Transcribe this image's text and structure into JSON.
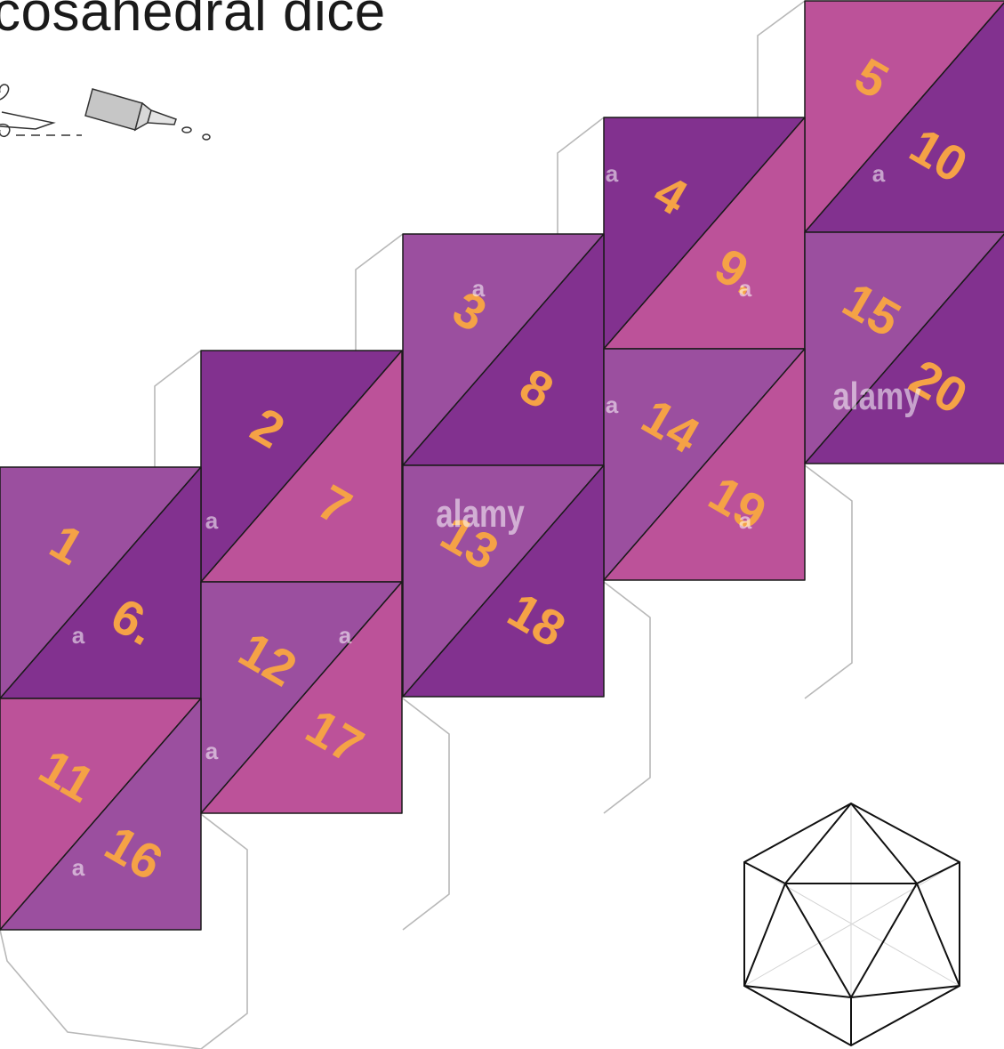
{
  "title": "cosahedral dice",
  "faces": [
    {
      "n": 1,
      "label": "1",
      "color": "#9b4f9f"
    },
    {
      "n": 2,
      "label": "2",
      "color": "#82318f"
    },
    {
      "n": 3,
      "label": "3",
      "color": "#9b4f9f"
    },
    {
      "n": 4,
      "label": "4",
      "color": "#82318f"
    },
    {
      "n": 5,
      "label": "5",
      "color": "#bc5299"
    },
    {
      "n": 6,
      "label": "6.",
      "color": "#82318f"
    },
    {
      "n": 7,
      "label": "7",
      "color": "#bc5299"
    },
    {
      "n": 8,
      "label": "8",
      "color": "#82318f"
    },
    {
      "n": 9,
      "label": "9.",
      "color": "#bc5299"
    },
    {
      "n": 10,
      "label": "10",
      "color": "#82318f"
    },
    {
      "n": 11,
      "label": "11",
      "color": "#bc5299"
    },
    {
      "n": 12,
      "label": "12",
      "color": "#9b4f9f"
    },
    {
      "n": 13,
      "label": "13",
      "color": "#9b4f9f"
    },
    {
      "n": 14,
      "label": "14",
      "color": "#9b4f9f"
    },
    {
      "n": 15,
      "label": "15",
      "color": "#9b4f9f"
    },
    {
      "n": 16,
      "label": "16",
      "color": "#9b4f9f"
    },
    {
      "n": 17,
      "label": "17",
      "color": "#bc5299"
    },
    {
      "n": 18,
      "label": "18",
      "color": "#82318f"
    },
    {
      "n": 19,
      "label": "19",
      "color": "#bc5299"
    },
    {
      "n": 20,
      "label": "20",
      "color": "#82318f"
    }
  ],
  "watermark": {
    "text": "alamy",
    "small": "a"
  },
  "colors": {
    "number": "#f5a246",
    "edge": "#1a1a1a",
    "glue_flap": "#b8b8b8"
  },
  "icons": {
    "cut": "scissors-icon",
    "glue": "glue-tube-icon",
    "solid": "icosahedron-icon"
  }
}
